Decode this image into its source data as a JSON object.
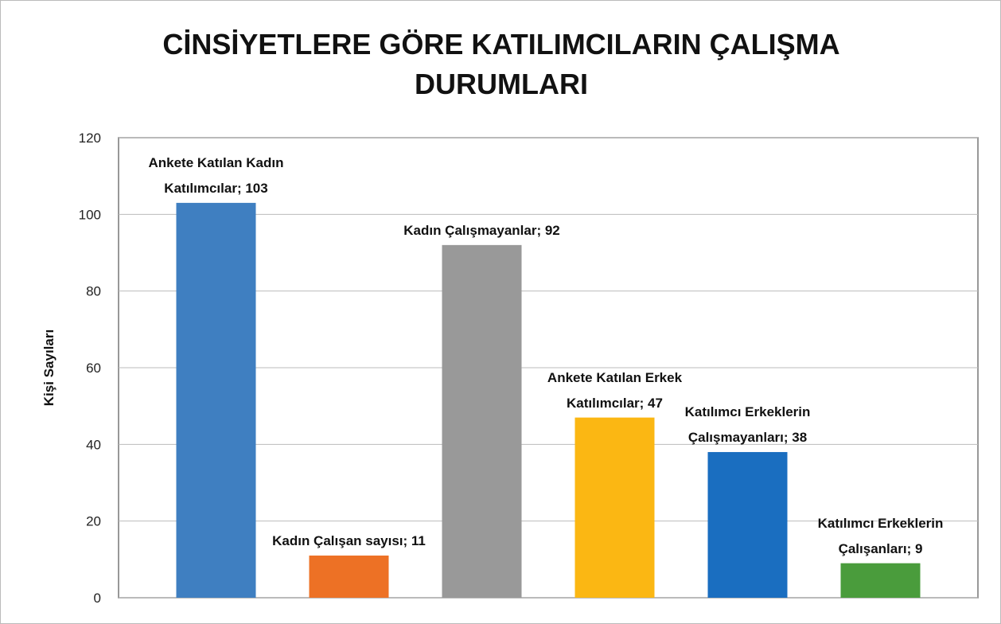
{
  "chart_data": {
    "type": "bar",
    "title": "CİNSİYETLERE GÖRE KATILIMCILARIN ÇALIŞMA DURUMLARI",
    "y_label": "Kişi Sayıları",
    "categories": [
      null,
      null,
      null,
      null,
      null,
      null
    ],
    "values": [
      103,
      11,
      92,
      47,
      38,
      9
    ],
    "value_labels": [
      "Ankete Katılan Kadın Katılımcılar; 103",
      "Kadın Çalışan sayısı; 11",
      "Kadın Çalışmayanlar; 92",
      "Ankete Katılan Erkek Katılımcılar; 47",
      "Katılımcı Erkeklerin Çalışmayanları; 38",
      "Katılımcı Erkeklerin Çalışanları; 9"
    ],
    "colors": [
      "#3f7fc1",
      "#ed7125",
      "#999999",
      "#fbb713",
      "#1a6ec0",
      "#4a9c3c"
    ],
    "ylim": [
      0,
      120
    ],
    "yticks": [
      0,
      20,
      40,
      60,
      80,
      100,
      120
    ],
    "grid": true
  }
}
